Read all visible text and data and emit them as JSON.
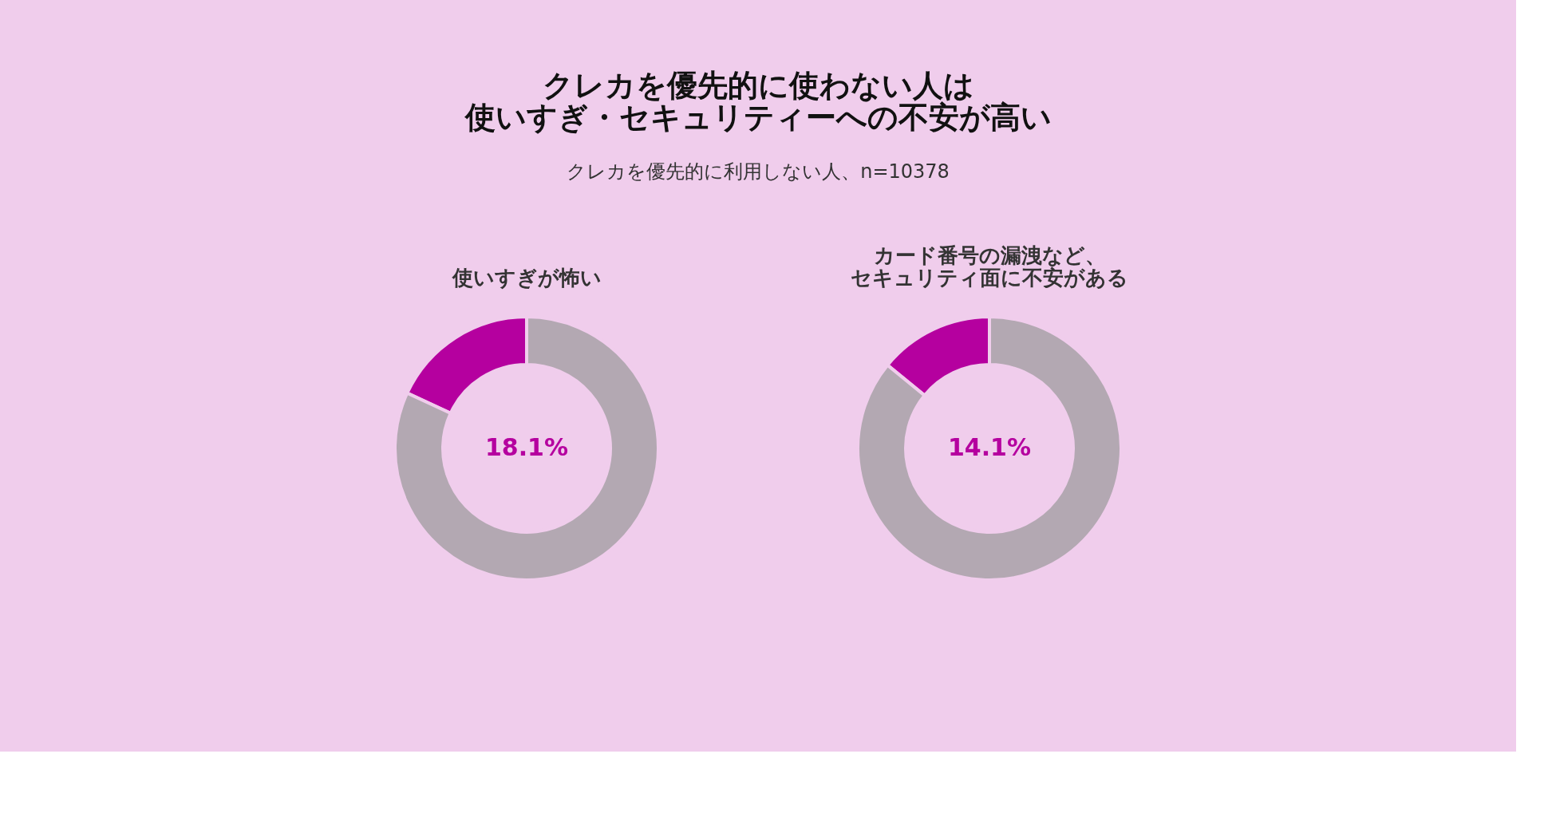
{
  "chart_data": [
    {
      "type": "other",
      "title": "クレカを優先的に使わない人は使いすぎ・セキュリティーへの不安が高い",
      "subtitle": "クレカを優先的に利用しない人、n=10378"
    },
    {
      "type": "donut",
      "title": "使いすぎが怖い",
      "categories": [
        null,
        null
      ],
      "values": [
        18.1,
        81.9
      ],
      "colors": [
        "#b5009f",
        "#b3a8b2"
      ],
      "value_labels": [
        "18.1%",
        null
      ]
    },
    {
      "type": "donut",
      "title": "カード番号の漏洩など、セキュリティ面に不安がある",
      "categories": [
        null,
        null
      ],
      "values": [
        14.1,
        85.9
      ],
      "colors": [
        "#b5009f",
        "#b3a8b2"
      ],
      "value_labels": [
        "14.1%",
        null
      ]
    }
  ]
}
